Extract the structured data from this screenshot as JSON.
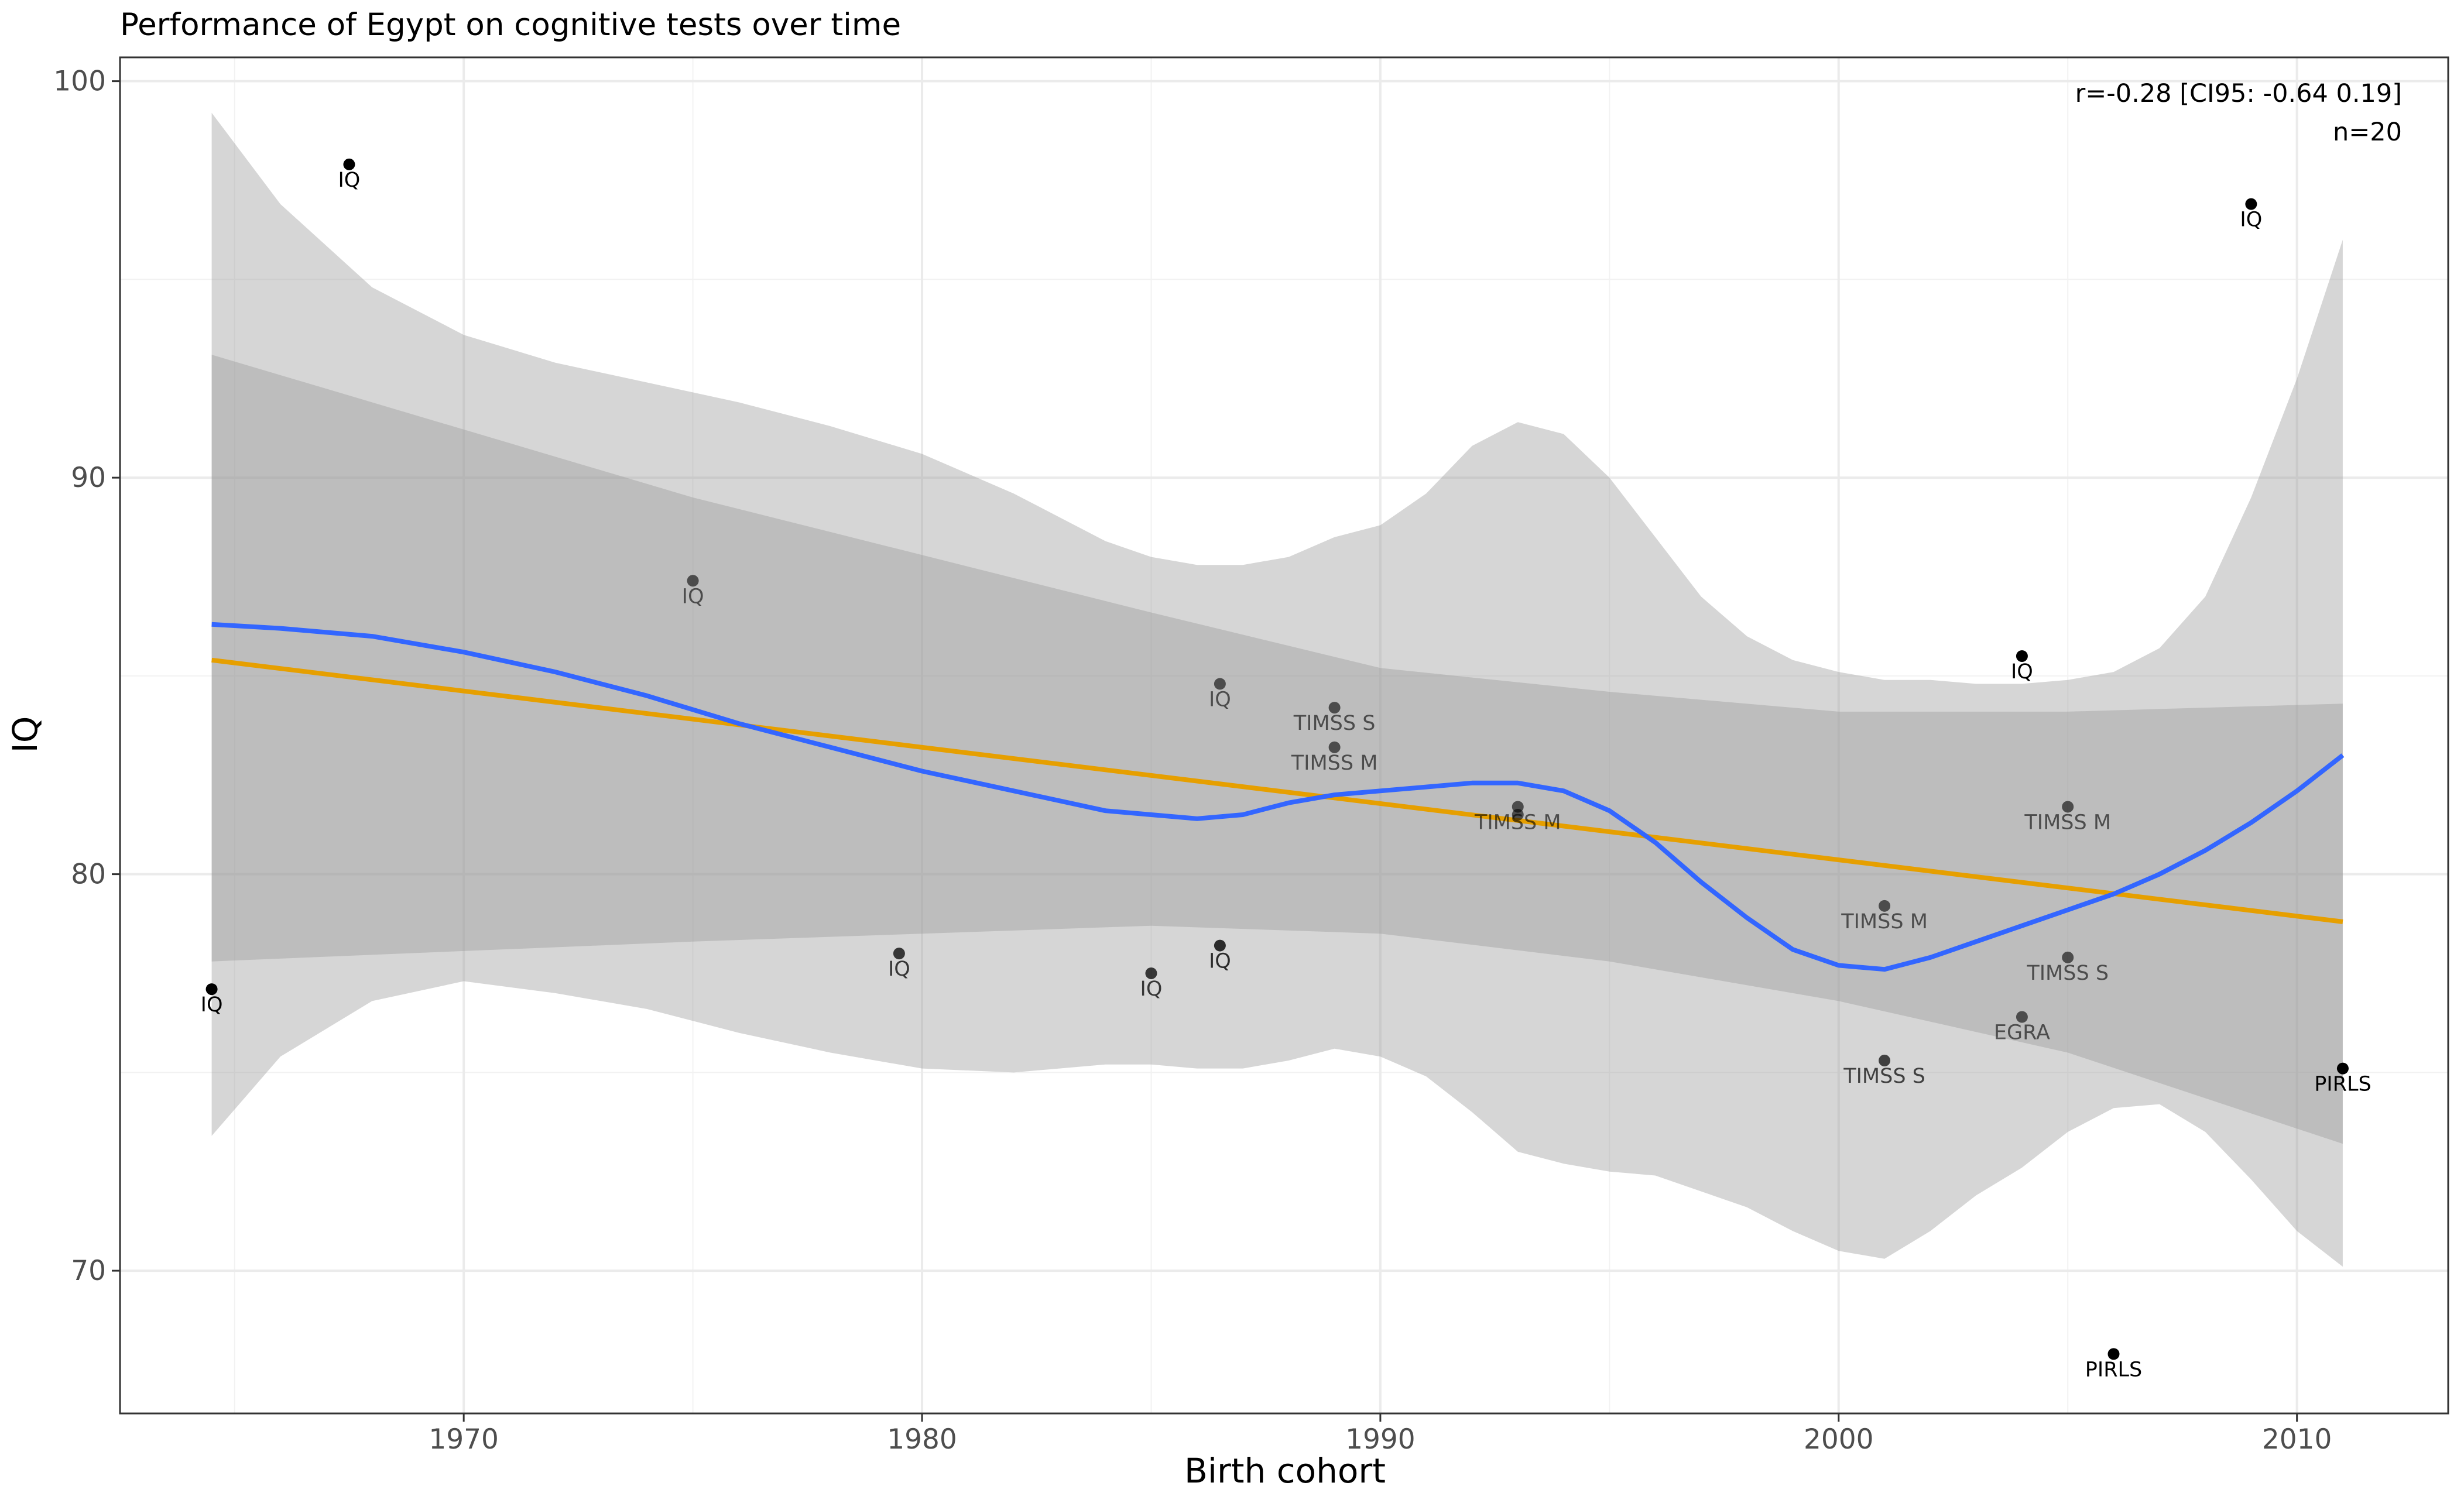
{
  "chart_data": {
    "type": "scatter",
    "title": "Performance of Egypt on cognitive tests over time",
    "xlabel": "Birth cohort",
    "ylabel": "IQ",
    "xlim": [
      1962.5,
      2013.3
    ],
    "ylim": [
      66.4,
      100.6
    ],
    "xticks": [
      1970,
      1980,
      1990,
      2000,
      2010
    ],
    "yticks": [
      70,
      80,
      90,
      100
    ],
    "grid": true,
    "annotation": [
      "r=-0.28 [CI95: -0.64 0.19]",
      "n=20"
    ],
    "point_color": "#000000",
    "points": [
      {
        "x": 1964.5,
        "y": 77.1,
        "label": "IQ",
        "alpha": 1.0
      },
      {
        "x": 1967.5,
        "y": 97.9,
        "label": "IQ",
        "alpha": 1.0
      },
      {
        "x": 1975.0,
        "y": 87.4,
        "label": "IQ",
        "alpha": 0.6
      },
      {
        "x": 1979.5,
        "y": 78.0,
        "label": "IQ",
        "alpha": 0.75
      },
      {
        "x": 1985.0,
        "y": 77.5,
        "label": "IQ",
        "alpha": 0.75
      },
      {
        "x": 1986.5,
        "y": 84.8,
        "label": "IQ",
        "alpha": 0.6
      },
      {
        "x": 1986.5,
        "y": 78.2,
        "label": "IQ",
        "alpha": 0.8
      },
      {
        "x": 1989.0,
        "y": 84.2,
        "label": "TIMSS S",
        "alpha": 0.6
      },
      {
        "x": 1989.0,
        "y": 83.2,
        "label": "TIMSS M",
        "alpha": 0.6
      },
      {
        "x": 1993.0,
        "y": 81.7,
        "label": "TIMSS M",
        "alpha": 0.6
      },
      {
        "x": 1993.0,
        "y": 81.5,
        "label": "",
        "alpha": 0.6
      },
      {
        "x": 2001.0,
        "y": 79.2,
        "label": "TIMSS M",
        "alpha": 0.6
      },
      {
        "x": 2001.0,
        "y": 75.3,
        "label": "TIMSS S",
        "alpha": 0.7
      },
      {
        "x": 2004.0,
        "y": 85.5,
        "label": "IQ",
        "alpha": 1.0
      },
      {
        "x": 2004.0,
        "y": 76.4,
        "label": "EGRA",
        "alpha": 0.6
      },
      {
        "x": 2005.0,
        "y": 81.7,
        "label": "TIMSS M",
        "alpha": 0.6
      },
      {
        "x": 2005.0,
        "y": 77.9,
        "label": "TIMSS S",
        "alpha": 0.6
      },
      {
        "x": 2006.0,
        "y": 67.9,
        "label": "PIRLS",
        "alpha": 1.0
      },
      {
        "x": 2009.0,
        "y": 96.9,
        "label": "IQ",
        "alpha": 1.0
      },
      {
        "x": 2011.0,
        "y": 75.1,
        "label": "PIRLS",
        "alpha": 1.0
      }
    ],
    "linear_fit": {
      "name": "linear",
      "color": "#E69F00",
      "x": [
        1964.5,
        2011.0
      ],
      "y": [
        85.4,
        78.8
      ],
      "ci_x": [
        1964.5,
        1975,
        1985,
        1990,
        1995,
        2000,
        2005,
        2011.0
      ],
      "ci_lower": [
        77.8,
        78.3,
        78.7,
        78.5,
        77.8,
        76.8,
        75.5,
        73.2
      ],
      "ci_upper": [
        93.1,
        89.5,
        86.6,
        85.2,
        84.6,
        84.1,
        84.1,
        84.3
      ]
    },
    "loess_fit": {
      "name": "loess",
      "color": "#3366FF",
      "x": [
        1964.5,
        1966,
        1968,
        1970,
        1972,
        1974,
        1976,
        1978,
        1980,
        1982,
        1984,
        1985,
        1986,
        1987,
        1988,
        1989,
        1990,
        1991,
        1992,
        1993,
        1994,
        1995,
        1996,
        1997,
        1998,
        1999,
        2000,
        2001,
        2002,
        2003,
        2004,
        2005,
        2006,
        2007,
        2008,
        2009,
        2010,
        2011.0
      ],
      "y": [
        86.3,
        86.2,
        86.0,
        85.6,
        85.1,
        84.5,
        83.8,
        83.2,
        82.6,
        82.1,
        81.6,
        81.5,
        81.4,
        81.5,
        81.8,
        82.0,
        82.1,
        82.2,
        82.3,
        82.3,
        82.1,
        81.6,
        80.8,
        79.8,
        78.9,
        78.1,
        77.7,
        77.6,
        77.9,
        78.3,
        78.7,
        79.1,
        79.5,
        80.0,
        80.6,
        81.3,
        82.1,
        83.0
      ],
      "ci_x": [
        1964.5,
        1966,
        1968,
        1970,
        1972,
        1974,
        1976,
        1978,
        1980,
        1982,
        1984,
        1985,
        1986,
        1987,
        1988,
        1989,
        1990,
        1991,
        1992,
        1993,
        1994,
        1995,
        1996,
        1997,
        1998,
        1999,
        2000,
        2001,
        2002,
        2003,
        2004,
        2005,
        2006,
        2007,
        2008,
        2009,
        2010,
        2011.0
      ],
      "ci_lower": [
        73.4,
        75.4,
        76.8,
        77.3,
        77.0,
        76.6,
        76.0,
        75.5,
        75.1,
        75.0,
        75.2,
        75.2,
        75.1,
        75.1,
        75.3,
        75.6,
        75.4,
        74.9,
        74.0,
        73.0,
        72.7,
        72.5,
        72.4,
        72.0,
        71.6,
        71.0,
        70.5,
        70.3,
        71.0,
        71.9,
        72.6,
        73.5,
        74.1,
        74.2,
        73.5,
        72.3,
        71.0,
        70.1
      ],
      "ci_upper": [
        99.2,
        96.9,
        94.8,
        93.6,
        92.9,
        92.4,
        91.9,
        91.3,
        90.6,
        89.6,
        88.4,
        88.0,
        87.8,
        87.8,
        88.0,
        88.5,
        88.8,
        89.6,
        90.8,
        91.4,
        91.1,
        90.0,
        88.5,
        87.0,
        86.0,
        85.4,
        85.1,
        84.9,
        84.9,
        84.8,
        84.8,
        84.9,
        85.1,
        85.7,
        87.0,
        89.5,
        92.5,
        96.0
      ]
    }
  }
}
